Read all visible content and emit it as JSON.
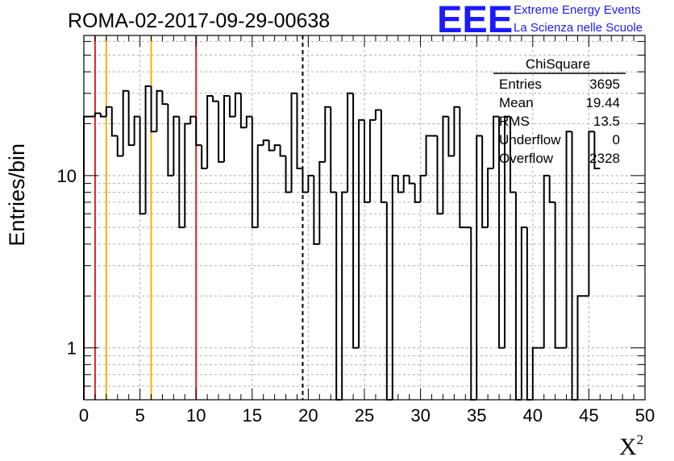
{
  "chart_data": {
    "type": "bar",
    "title": "ROMA-02-2017-09-29-00638",
    "xlabel": "X",
    "xlabel_sup": "2",
    "ylabel": "Entries/bin",
    "xlim": [
      0,
      50
    ],
    "ylim": [
      0.5,
      65
    ],
    "yscale": "log",
    "grid": true,
    "bin_width": 0.5,
    "x_ticks": [
      "0",
      "5",
      "10",
      "15",
      "20",
      "25",
      "30",
      "35",
      "40",
      "45",
      "50"
    ],
    "y_ticks": [
      "1",
      "10"
    ],
    "values": [
      22,
      22,
      23,
      22,
      25,
      17,
      13,
      31,
      15,
      22,
      6,
      33,
      18,
      31,
      26,
      10,
      22,
      5,
      20,
      22,
      15,
      11,
      29,
      27,
      12,
      29,
      22,
      30,
      19,
      22,
      5,
      15,
      16,
      14,
      15,
      13,
      8,
      30,
      11,
      8,
      10,
      4,
      12,
      25,
      8,
      0.3,
      8,
      30,
      1,
      21,
      7,
      21,
      24,
      7,
      0.3,
      10,
      8,
      10,
      9,
      7,
      10,
      17,
      17,
      6,
      22,
      13,
      25,
      5,
      5,
      0.3,
      17,
      5,
      11,
      22,
      1,
      22,
      8,
      0.3,
      5,
      0.3,
      1,
      1,
      10,
      7,
      1,
      1,
      18,
      0.3,
      2,
      2,
      18,
      11
    ],
    "vlines": [
      {
        "x": 1,
        "color": "#dd2222",
        "style": "solid"
      },
      {
        "x": 2,
        "color": "#f0b400",
        "style": "solid"
      },
      {
        "x": 6,
        "color": "#f0b400",
        "style": "solid"
      },
      {
        "x": 10,
        "color": "#dd2222",
        "style": "solid"
      },
      {
        "x": 19.5,
        "color": "#000000",
        "style": "dashed"
      }
    ]
  },
  "logo": {
    "text": "EEE",
    "line1": "Extreme Energy Events",
    "line2": "La Scienza nelle Scuole",
    "color": "#1a1aff"
  },
  "stats": {
    "title": "ChiSquare",
    "rows": [
      {
        "label": "Entries",
        "value": "3695"
      },
      {
        "label": "Mean",
        "value": "19.44"
      },
      {
        "label": "RMS",
        "value": "13.5"
      },
      {
        "label": "Underflow",
        "value": "0"
      },
      {
        "label": "Overflow",
        "value": "2328"
      }
    ]
  }
}
